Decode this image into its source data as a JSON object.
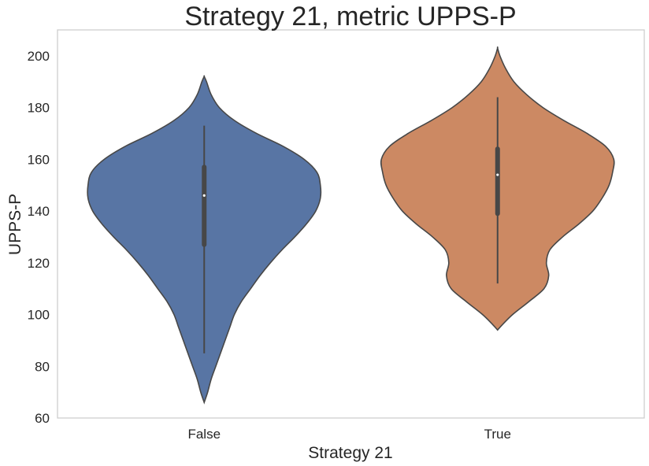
{
  "chart_data": {
    "type": "violin",
    "title": "Strategy 21, metric UPPS-P",
    "xlabel": "Strategy 21",
    "ylabel": "UPPS-P",
    "categories": [
      "False",
      "True"
    ],
    "ylim": [
      60,
      210
    ],
    "yticks": [
      60,
      80,
      100,
      120,
      140,
      160,
      180,
      200
    ],
    "grid": false,
    "series": [
      {
        "category": "False",
        "color": "#5875a4",
        "density_min": 66,
        "density_max": 192,
        "whisker_low": 85,
        "q1": 127,
        "median": 146,
        "q3": 157,
        "whisker_high": 173,
        "density": [
          [
            66,
            0.0
          ],
          [
            70,
            0.03
          ],
          [
            75,
            0.06
          ],
          [
            80,
            0.1
          ],
          [
            85,
            0.14
          ],
          [
            90,
            0.18
          ],
          [
            95,
            0.22
          ],
          [
            100,
            0.26
          ],
          [
            105,
            0.32
          ],
          [
            110,
            0.4
          ],
          [
            115,
            0.48
          ],
          [
            120,
            0.57
          ],
          [
            125,
            0.67
          ],
          [
            130,
            0.78
          ],
          [
            135,
            0.88
          ],
          [
            140,
            0.96
          ],
          [
            145,
            1.0
          ],
          [
            150,
            1.0
          ],
          [
            155,
            0.97
          ],
          [
            160,
            0.86
          ],
          [
            165,
            0.68
          ],
          [
            170,
            0.45
          ],
          [
            175,
            0.26
          ],
          [
            180,
            0.13
          ],
          [
            185,
            0.06
          ],
          [
            190,
            0.02
          ],
          [
            192,
            0.0
          ]
        ]
      },
      {
        "category": "True",
        "color": "#cc8963",
        "density_min": 94,
        "density_max": 203,
        "whisker_low": 112,
        "q1": 139,
        "median": 154,
        "q3": 164,
        "whisker_high": 184,
        "density": [
          [
            94,
            0.0
          ],
          [
            96,
            0.04
          ],
          [
            100,
            0.13
          ],
          [
            105,
            0.27
          ],
          [
            110,
            0.4
          ],
          [
            115,
            0.44
          ],
          [
            120,
            0.42
          ],
          [
            125,
            0.45
          ],
          [
            130,
            0.56
          ],
          [
            135,
            0.7
          ],
          [
            140,
            0.82
          ],
          [
            145,
            0.9
          ],
          [
            150,
            0.96
          ],
          [
            155,
            0.99
          ],
          [
            160,
            1.0
          ],
          [
            165,
            0.93
          ],
          [
            170,
            0.77
          ],
          [
            175,
            0.57
          ],
          [
            180,
            0.39
          ],
          [
            185,
            0.25
          ],
          [
            190,
            0.14
          ],
          [
            195,
            0.07
          ],
          [
            200,
            0.02
          ],
          [
            203,
            0.0
          ]
        ]
      }
    ]
  }
}
